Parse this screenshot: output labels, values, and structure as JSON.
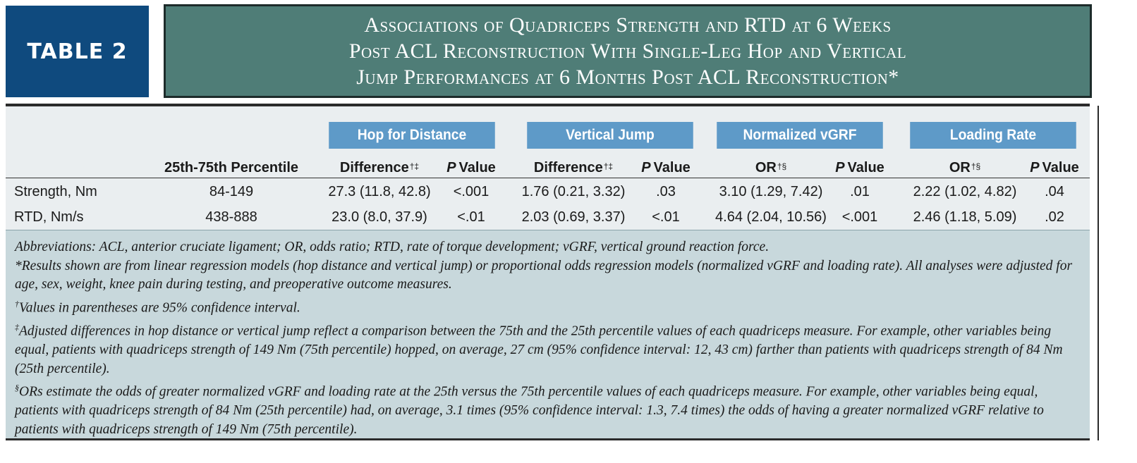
{
  "label": "TABLE 2",
  "title_lines": [
    "Associations of Quadriceps Strength and RTD at 6 Weeks",
    "Post ACL Reconstruction With Single-Leg Hop and Vertical",
    "Jump Performances at 6 Months Post ACL Reconstruction*"
  ],
  "colors": {
    "label_bg": "#0f4a7e",
    "title_bg": "#4f7d77",
    "group_header_bg": "#5e9ac8",
    "table_bg": "#eaeef0",
    "notes_bg": "#c8d8dc"
  },
  "groups": [
    "Hop for Distance",
    "Vertical Jump",
    "Normalized vGRF",
    "Loading Rate"
  ],
  "columns": {
    "percentile": "25th-75th Percentile",
    "difference": "Difference",
    "difference_sup": "†‡",
    "p_letter": "P",
    "p_word": "Value",
    "or": "OR",
    "or_sup": "†§"
  },
  "rows": [
    {
      "label": "Strength, Nm",
      "percentile": "84-149",
      "hop_diff": "27.3 (11.8, 42.8)",
      "hop_p": "<.001",
      "vj_diff": "1.76 (0.21, 3.32)",
      "vj_p": ".03",
      "vgrf_or": "3.10 (1.29, 7.42)",
      "vgrf_p": ".01",
      "lr_or": "2.22 (1.02, 4.82)",
      "lr_p": ".04"
    },
    {
      "label": "RTD, Nm/s",
      "percentile": "438-888",
      "hop_diff": "23.0 (8.0, 37.9)",
      "hop_p": "<.01",
      "vj_diff": "2.03 (0.69, 3.37)",
      "vj_p": "<.01",
      "vgrf_or": "4.64 (2.04, 10.56)",
      "vgrf_p": "<.001",
      "lr_or": "2.46 (1.18, 5.09)",
      "lr_p": ".02"
    }
  ],
  "notes": {
    "abbreviations": "Abbreviations: ACL, anterior cruciate ligament; OR, odds ratio; RTD, rate of torque development; vGRF, vertical ground reaction force.",
    "star": "*Results shown are from linear regression models (hop distance and vertical jump) or proportional odds regression models (normalized vGRF and loading rate). All analyses were adjusted for age, sex, weight, knee pain during testing, and preoperative outcome measures.",
    "dagger_mark": "†",
    "dagger": "Values in parentheses are 95% confidence interval.",
    "ddagger_mark": "‡",
    "ddagger": "Adjusted differences in hop distance or vertical jump reflect a comparison between the 75th and the 25th percentile values of each quadriceps measure. For example, other variables being equal, patients with quadriceps strength of 149 Nm (75th percentile) hopped, on average, 27 cm (95% confidence interval: 12, 43 cm) farther than patients with quadriceps strength of 84 Nm (25th percentile).",
    "section_mark": "§",
    "section": "ORs estimate the odds of greater normalized vGRF and loading rate at the 25th versus the 75th percentile values of each quadriceps measure. For example, other variables being equal, patients with quadriceps strength of 84 Nm (25th percentile) had, on average, 3.1 times (95% confidence interval: 1.3, 7.4 times) the odds of having a greater normalized vGRF relative to patients with quadriceps strength of 149 Nm (75th percentile)."
  }
}
